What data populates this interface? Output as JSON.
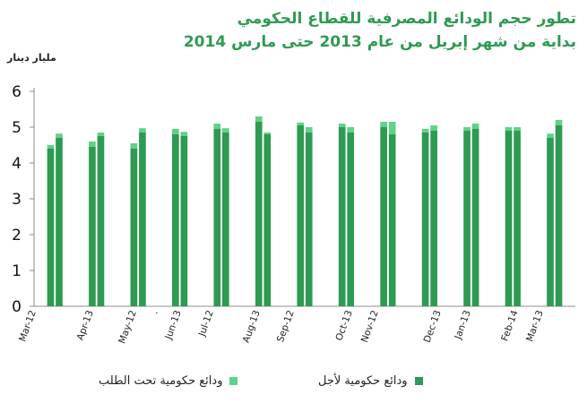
{
  "title": {
    "line1": "تطور حجم الودائع المصرفية للقطاع الحكومي",
    "line2": "بداية من شهر إبريل من عام  2013 حتى مارس 2014"
  },
  "unit_label": "مليار دينار",
  "legend": {
    "demand": "ودائع حكومية تحت الطلب",
    "term": "ودائع حكومية لأجل"
  },
  "colors": {
    "term": "#2e9a52",
    "demand": "#5fd18b",
    "axis": "#8c8c8c",
    "title": "#2e9a52"
  },
  "chart_data": {
    "type": "bar",
    "stacked": true,
    "ylim": [
      0,
      6
    ],
    "yticks": [
      0,
      1,
      2,
      3,
      4,
      5,
      6
    ],
    "xtick_labels": [
      "Mar-12",
      "Apr-13",
      "May-12",
      ".",
      "Jun-13",
      "Jul-12",
      "Aug-13",
      "Sep-12",
      "Oct-13",
      "Nov-12",
      "Dec-13",
      "Jan-13",
      "Feb-14",
      "Mar-13"
    ],
    "series": [
      {
        "name": "ودائع حكومية لأجل",
        "values": [
          4.4,
          4.7,
          4.45,
          4.75,
          4.4,
          4.85,
          4.8,
          4.75,
          4.95,
          4.85,
          5.15,
          4.8,
          5.05,
          4.85,
          5.0,
          4.85,
          5.0,
          4.8,
          4.85,
          4.9,
          4.9,
          4.95,
          4.9,
          4.9,
          4.7,
          5.05
        ]
      },
      {
        "name": "ودائع حكومية تحت الطلب",
        "values": [
          0.1,
          0.12,
          0.15,
          0.1,
          0.15,
          0.12,
          0.15,
          0.12,
          0.15,
          0.12,
          0.15,
          0.05,
          0.08,
          0.15,
          0.1,
          0.15,
          0.15,
          0.35,
          0.1,
          0.15,
          0.1,
          0.15,
          0.1,
          0.1,
          0.12,
          0.15
        ]
      }
    ]
  }
}
